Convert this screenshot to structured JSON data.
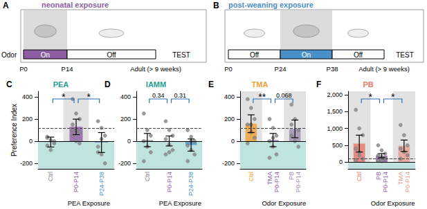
{
  "diagrams": [
    {
      "panel": "A",
      "title": "neonatal exposure",
      "row_label": "Odor",
      "segments": [
        "On",
        "Off"
      ],
      "end_label": "TEST",
      "ticks": [
        "P0",
        "P14",
        "Adult (> 9 weeks)"
      ]
    },
    {
      "panel": "B",
      "title": "post-weaning exposure",
      "segments": [
        "Off",
        "On",
        "Off"
      ],
      "end_label": "TEST",
      "ticks": [
        "P0",
        "P24",
        "P38",
        "Adult (> 9 weeks)"
      ]
    }
  ],
  "chart_data": [
    {
      "type": "bar",
      "panel": "C",
      "title": "PEA",
      "color": "#2a9d8f",
      "ylabel": "Preference Index",
      "categories": [
        "Ctrl",
        "P0-P14",
        "P24-P38"
      ],
      "colors": [
        "#7f7f7f",
        "#8e5ea2",
        "#4a90c8"
      ],
      "values": [
        -8,
        129,
        -12
      ],
      "errors": [
        45,
        70,
        90
      ],
      "points": [
        [
          40,
          10,
          -20,
          -40,
          -80,
          0,
          30
        ],
        [
          380,
          250,
          200,
          150,
          100,
          80,
          50,
          0,
          -20,
          100
        ],
        [
          180,
          120,
          50,
          -50,
          -120,
          -200,
          -100,
          20
        ]
      ],
      "shaded": [
        false,
        true,
        false
      ],
      "reference": 120,
      "ylim": [
        -250,
        450
      ],
      "yticks": [
        -200,
        0,
        200,
        400
      ],
      "group_label": "PEA Exposure",
      "comparisons": [
        {
          "between": [
            0,
            1
          ],
          "label": "*"
        },
        {
          "between": [
            1,
            2
          ],
          "label": "*"
        }
      ]
    },
    {
      "type": "bar",
      "panel": "D",
      "title": "IAMM",
      "color": "#2a9d8f",
      "categories": [
        "Ctrl",
        "P0-P14",
        "P24-P38"
      ],
      "colors": [
        "#7f7f7f",
        "#8e5ea2",
        "#4a90c8"
      ],
      "values": [
        10,
        2,
        -35
      ],
      "errors": [
        60,
        45,
        55
      ],
      "points": [
        [
          250,
          100,
          50,
          0,
          -50,
          -100,
          -180
        ],
        [
          180,
          100,
          50,
          20,
          -30,
          -80,
          -120,
          -100
        ],
        [
          100,
          40,
          0,
          -40,
          -80,
          -120,
          -180,
          0
        ]
      ],
      "shaded": [
        false,
        false,
        false
      ],
      "reference": 120,
      "ylim": [
        -250,
        450
      ],
      "yticks": [
        -200,
        0,
        200,
        400
      ],
      "group_label": "PEA Exposure",
      "comparisons": [
        {
          "between": [
            0,
            1
          ],
          "label": "0.34"
        },
        {
          "between": [
            1,
            2
          ],
          "label": "0.31"
        }
      ]
    },
    {
      "type": "bar",
      "panel": "E",
      "title": "TMA",
      "color": "#f0a030",
      "categories": [
        "Ctrl",
        "TMA\nP0-P14",
        "PB\nP0-P14"
      ],
      "colors": [
        "#f0a030",
        "#8e5ea2",
        "#9d8fb0"
      ],
      "values": [
        158,
        10,
        111
      ],
      "errors": [
        80,
        60,
        80
      ],
      "points": [
        [
          380,
          300,
          200,
          150,
          80,
          30,
          -20,
          150
        ],
        [
          200,
          120,
          50,
          0,
          -50,
          -120,
          -150,
          30
        ],
        [
          330,
          200,
          100,
          50,
          0,
          -50,
          150
        ]
      ],
      "shaded": [
        true,
        false,
        true
      ],
      "reference": 120,
      "ylim": [
        -250,
        450
      ],
      "yticks": [
        -200,
        0,
        200,
        400
      ],
      "group_label": "Odor Exposure",
      "comparisons": [
        {
          "between": [
            0,
            1
          ],
          "label": "**"
        },
        {
          "between": [
            1,
            2
          ],
          "label": "0.068"
        }
      ]
    },
    {
      "type": "bar",
      "panel": "F",
      "title": "PB",
      "color": "#e8776a",
      "categories": [
        "Ctrl",
        "PB\nP0-P14",
        "TMA\nP0-P14"
      ],
      "colors": [
        "#e8776a",
        "#8e5ea2",
        "#e8a090"
      ],
      "values": [
        550,
        192,
        485
      ],
      "errors": [
        250,
        60,
        170
      ],
      "points": [
        [
          1550,
          1000,
          800,
          400,
          200,
          100,
          50,
          300
        ],
        [
          500,
          350,
          250,
          200,
          150,
          100,
          50,
          30,
          100
        ],
        [
          1100,
          800,
          500,
          400,
          300,
          200,
          100
        ]
      ],
      "shaded": [
        true,
        false,
        true
      ],
      "reference": 100,
      "ylim": [
        -200,
        2100
      ],
      "yticks": [
        0,
        500,
        1000,
        1500,
        2000
      ],
      "group_label": "Odor Exposure",
      "comparisons": [
        {
          "between": [
            0,
            1
          ],
          "label": "*"
        },
        {
          "between": [
            1,
            2
          ],
          "label": "*"
        }
      ]
    }
  ]
}
